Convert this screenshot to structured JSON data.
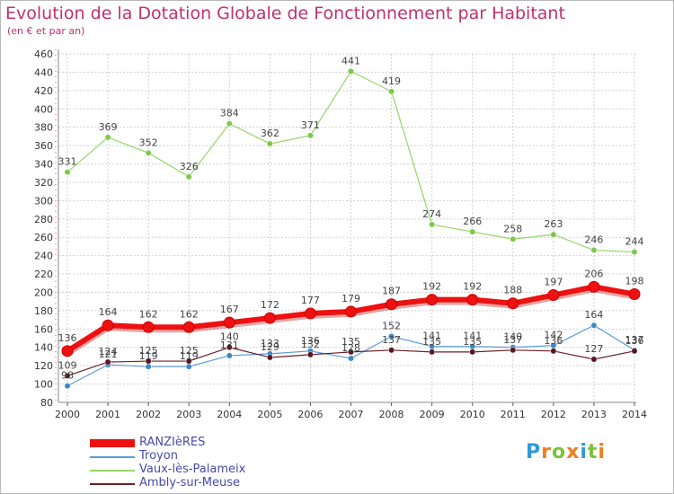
{
  "title": "Evolution de la Dotation Globale de Fonctionnement par Habitant",
  "subtitle": "(en € et par an)",
  "logo": {
    "letters": [
      {
        "ch": "P",
        "color": "#2e9ad8"
      },
      {
        "ch": "r",
        "color": "#f07d1c"
      },
      {
        "ch": "o",
        "color": "#7cc23b"
      },
      {
        "ch": "x",
        "color": "#f07d1c"
      },
      {
        "ch": "i",
        "color": "#2e9ad8"
      },
      {
        "ch": "t",
        "color": "#7cc23b"
      },
      {
        "ch": "i",
        "color": "#f07d1c"
      }
    ]
  },
  "chart_data": {
    "type": "line",
    "title": "Evolution de la Dotation Globale de Fonctionnement par Habitant",
    "subtitle": "(en € et par an)",
    "x": [
      2000,
      2001,
      2002,
      2003,
      2004,
      2005,
      2006,
      2007,
      2008,
      2009,
      2010,
      2011,
      2012,
      2013,
      2014
    ],
    "ylim": [
      80,
      460
    ],
    "yticks": [
      80,
      100,
      120,
      140,
      160,
      180,
      200,
      220,
      240,
      260,
      280,
      300,
      320,
      340,
      360,
      380,
      400,
      420,
      440,
      460
    ],
    "grid": true,
    "legend_position": "bottom-left",
    "series": [
      {
        "name": "RANZIèRES",
        "color": "#ee1111",
        "width": 6,
        "values": [
          136,
          164,
          162,
          162,
          167,
          172,
          177,
          179,
          187,
          192,
          192,
          188,
          197,
          206,
          198
        ]
      },
      {
        "name": "Troyon",
        "color": "#5b9bd5",
        "width": 1.2,
        "values": [
          98,
          121,
          119,
          119,
          131,
          133,
          136,
          128,
          152,
          141,
          141,
          140,
          142,
          164,
          137
        ]
      },
      {
        "name": "Vaux-lès-Palameix",
        "color": "#96d46a",
        "width": 1.2,
        "values": [
          331,
          369,
          352,
          326,
          384,
          362,
          371,
          441,
          419,
          274,
          266,
          258,
          263,
          246,
          244
        ]
      },
      {
        "name": "Ambly-sur-Meuse",
        "color": "#6b1f2a",
        "width": 1.2,
        "values": [
          109,
          124,
          125,
          125,
          140,
          129,
          132,
          135,
          137,
          135,
          135,
          137,
          136,
          127,
          136
        ]
      }
    ],
    "data_labels": [
      [
        136,
        164,
        162,
        162,
        167,
        172,
        177,
        179,
        187,
        192,
        192,
        188,
        197,
        206,
        198
      ],
      [
        98,
        121,
        119,
        119,
        131,
        133,
        136,
        128,
        152,
        141,
        141,
        140,
        142,
        164,
        137
      ],
      [
        331,
        369,
        352,
        326,
        384,
        362,
        371,
        441,
        419,
        274,
        266,
        258,
        263,
        246,
        244
      ],
      [
        109,
        124,
        125,
        125,
        140,
        129,
        132,
        135,
        137,
        135,
        135,
        137,
        136,
        127,
        136
      ]
    ]
  }
}
